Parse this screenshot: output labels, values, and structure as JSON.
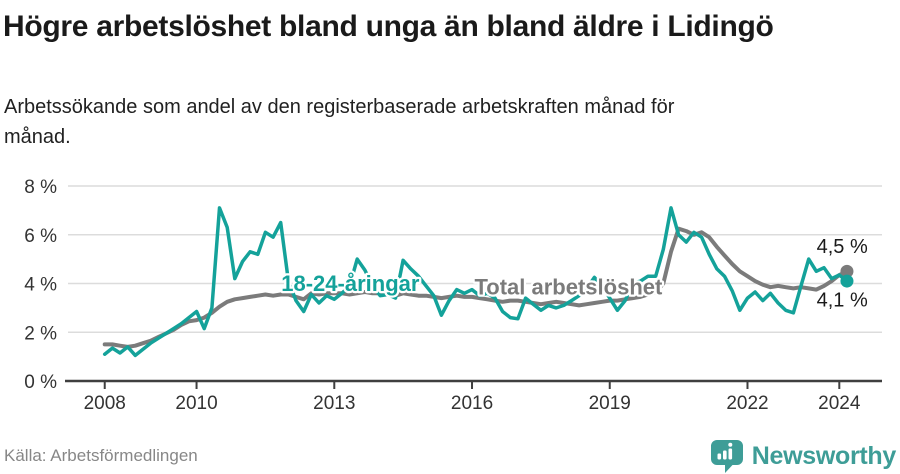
{
  "colors": {
    "teal": "#14a29a",
    "gray": "#7b7b7b",
    "logo_teal": "#3e9d97",
    "grid": "#dcdcdc",
    "axis": "#3f3f3f",
    "axis_text": "#333333",
    "value_label_text": "#1a1a1a"
  },
  "footer": {
    "brand": "Newsworthy"
  },
  "chart_data": {
    "type": "line",
    "title": "Högre arbetslöshet bland unga än bland äldre i Lidingö",
    "subtitle": "Arbetssökande som andel av den registerbaserade arbetskraften månad för månad.",
    "source": "Källa: Arbetsförmedlingen",
    "unit": "%",
    "x_axis_range": [
      2007.2,
      2024.93
    ],
    "ylim": [
      0,
      8
    ],
    "grid": "horizontal",
    "legend_position": "inline-labels",
    "x_start": 2008.0,
    "x_step": 0.1666667,
    "yticks": [
      {
        "y": 0,
        "label": "0 %"
      },
      {
        "y": 2,
        "label": "2 %"
      },
      {
        "y": 4,
        "label": "4 %"
      },
      {
        "y": 6,
        "label": "6 %"
      },
      {
        "y": 8,
        "label": "8 %"
      }
    ],
    "xticks": [
      {
        "x": 2008,
        "label": "2008"
      },
      {
        "x": 2010,
        "label": "2010"
      },
      {
        "x": 2013,
        "label": "2013"
      },
      {
        "x": 2016,
        "label": "2016"
      },
      {
        "x": 2019,
        "label": "2019"
      },
      {
        "x": 2022,
        "label": "2022"
      },
      {
        "x": 2024,
        "label": "2024"
      }
    ],
    "series": [
      {
        "id": "total",
        "name": "Total arbetslöshet",
        "color": "#7b7b7b",
        "stroke_width": 4,
        "end_dot_radius": 6.5,
        "inline_label": {
          "text": "Total arbetslöshet",
          "x": 2018.1,
          "y": 3.55
        },
        "end_label": {
          "text": "4,5 %",
          "x": 2024.62,
          "y": 5.25
        },
        "values": [
          1.5,
          1.5,
          1.45,
          1.4,
          1.45,
          1.55,
          1.65,
          1.8,
          1.95,
          2.1,
          2.3,
          2.45,
          2.5,
          2.6,
          2.8,
          3.05,
          3.25,
          3.35,
          3.4,
          3.45,
          3.5,
          3.55,
          3.5,
          3.55,
          3.55,
          3.45,
          3.35,
          3.6,
          3.55,
          3.6,
          3.6,
          3.6,
          3.55,
          3.6,
          3.65,
          3.6,
          3.6,
          3.55,
          3.5,
          3.6,
          3.55,
          3.5,
          3.5,
          3.45,
          3.4,
          3.45,
          3.5,
          3.45,
          3.45,
          3.4,
          3.35,
          3.3,
          3.25,
          3.3,
          3.3,
          3.25,
          3.2,
          3.15,
          3.2,
          3.25,
          3.2,
          3.15,
          3.1,
          3.15,
          3.2,
          3.25,
          3.3,
          3.3,
          3.35,
          3.4,
          3.45,
          3.55,
          3.65,
          4.0,
          5.3,
          6.25,
          6.15,
          6.0,
          6.1,
          5.9,
          5.5,
          5.15,
          4.8,
          4.5,
          4.3,
          4.1,
          3.95,
          3.85,
          3.9,
          3.85,
          3.8,
          3.85,
          3.8,
          3.75,
          3.9,
          4.1,
          4.35,
          4.5
        ]
      },
      {
        "id": "young",
        "name": "18-24-åringar",
        "color": "#14a29a",
        "stroke_width": 3.5,
        "end_dot_radius": 6.5,
        "inline_label": {
          "text": "18-24-åringar",
          "x": 2013.35,
          "y": 3.7
        },
        "end_label": {
          "text": "4,1 %",
          "x": 2024.62,
          "y": 3.05
        },
        "values": [
          1.1,
          1.35,
          1.15,
          1.4,
          1.05,
          1.3,
          1.55,
          1.75,
          1.95,
          2.15,
          2.35,
          2.6,
          2.85,
          2.15,
          3.0,
          7.1,
          6.3,
          4.2,
          4.9,
          5.3,
          5.2,
          6.1,
          5.9,
          6.5,
          4.1,
          3.3,
          2.85,
          3.55,
          3.2,
          3.5,
          3.35,
          3.6,
          3.9,
          5.0,
          4.55,
          3.9,
          3.5,
          3.55,
          3.4,
          4.95,
          4.6,
          4.3,
          3.9,
          3.5,
          2.7,
          3.3,
          3.75,
          3.6,
          3.75,
          3.5,
          3.6,
          3.4,
          2.85,
          2.6,
          2.55,
          3.4,
          3.15,
          2.9,
          3.1,
          3.0,
          3.1,
          3.3,
          3.5,
          3.8,
          4.25,
          3.9,
          3.4,
          2.9,
          3.3,
          4.0,
          4.1,
          4.3,
          4.3,
          5.4,
          7.1,
          6.0,
          5.7,
          6.1,
          5.9,
          5.2,
          4.6,
          4.3,
          3.7,
          2.9,
          3.4,
          3.65,
          3.3,
          3.6,
          3.2,
          2.9,
          2.8,
          3.9,
          5.0,
          4.5,
          4.65,
          4.2,
          4.35,
          4.1
        ]
      }
    ]
  }
}
